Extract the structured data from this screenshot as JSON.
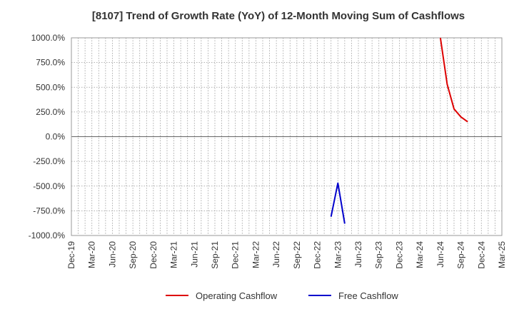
{
  "chart_data": {
    "type": "line",
    "title": "[8107]  Trend of Growth Rate (YoY) of 12-Month Moving Sum of Cashflows",
    "xlabel": "",
    "ylabel": "",
    "ylim": [
      -1000,
      1000
    ],
    "yticks": [
      1000,
      750,
      500,
      250,
      0,
      -250,
      -500,
      -750,
      -1000
    ],
    "ytick_labels": [
      "1000.0%",
      "750.0%",
      "500.0%",
      "250.0%",
      "0.0%",
      "-250.0%",
      "-500.0%",
      "-750.0%",
      "-1000.0%"
    ],
    "x_range": [
      "2019-12",
      "2025-03"
    ],
    "x_tick_labels": [
      "Dec-19",
      "Mar-20",
      "Jun-20",
      "Sep-20",
      "Dec-20",
      "Mar-21",
      "Jun-21",
      "Sep-21",
      "Dec-21",
      "Mar-22",
      "Jun-22",
      "Sep-22",
      "Dec-22",
      "Mar-23",
      "Jun-23",
      "Sep-23",
      "Dec-23",
      "Mar-24",
      "Jun-24",
      "Sep-24",
      "Dec-24",
      "Mar-25"
    ],
    "grid": true,
    "legend_position": "bottom",
    "series": [
      {
        "name": "Operating Cashflow",
        "color": "#dd0000",
        "points": [
          {
            "x": "2024-06",
            "y": 1000
          },
          {
            "x": "2024-07",
            "y": 530
          },
          {
            "x": "2024-08",
            "y": 280
          },
          {
            "x": "2024-09",
            "y": 200
          },
          {
            "x": "2024-10",
            "y": 150
          }
        ]
      },
      {
        "name": "Free Cashflow",
        "color": "#0000cc",
        "points": [
          {
            "x": "2023-02",
            "y": -810
          },
          {
            "x": "2023-03",
            "y": -470
          },
          {
            "x": "2023-04",
            "y": -880
          }
        ]
      }
    ]
  }
}
